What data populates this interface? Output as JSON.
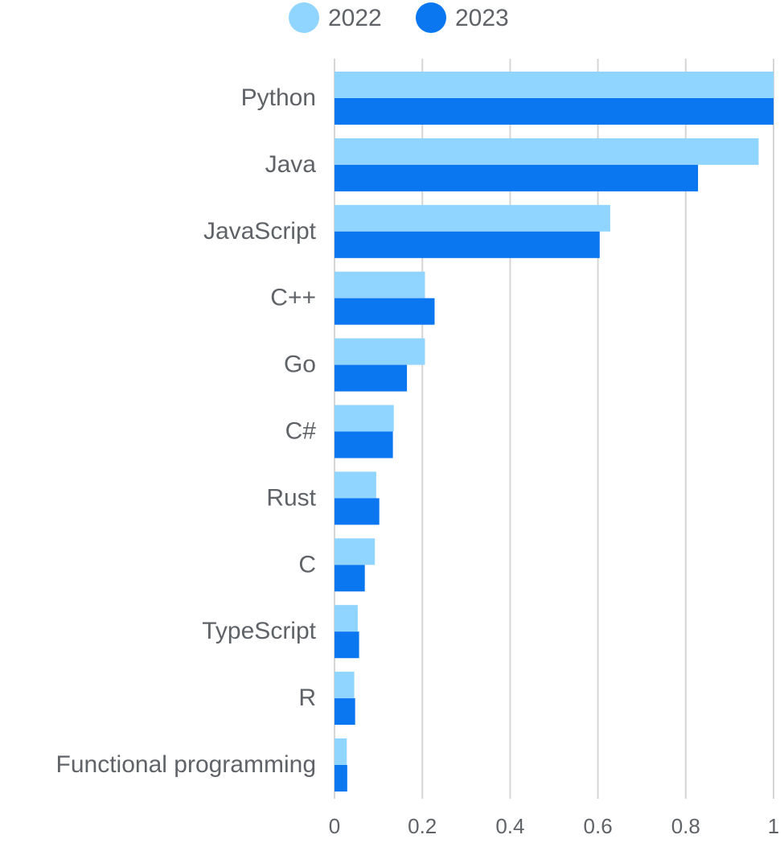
{
  "chart_data": {
    "type": "bar",
    "orientation": "horizontal",
    "categories": [
      "Python",
      "Java",
      "JavaScript",
      "C++",
      "Go",
      "C#",
      "Rust",
      "C",
      "TypeScript",
      "R",
      "Functional programming"
    ],
    "series": [
      {
        "name": "2022",
        "color": "#90D5FF",
        "values": [
          1.0,
          0.966,
          0.628,
          0.206,
          0.206,
          0.135,
          0.095,
          0.092,
          0.053,
          0.045,
          0.028
        ]
      },
      {
        "name": "2023",
        "color": "#0A76F0",
        "values": [
          1.0,
          0.828,
          0.604,
          0.228,
          0.165,
          0.133,
          0.102,
          0.069,
          0.056,
          0.047,
          0.029
        ]
      }
    ],
    "xlim": [
      0,
      1
    ],
    "xticks": [
      "0",
      "0.2",
      "0.4",
      "0.6",
      "0.8",
      "1"
    ],
    "grid": "vertical",
    "legend_position": "top"
  },
  "colors": {
    "grid": "#d5d5d5",
    "text": "#5f6368",
    "background": "#ffffff"
  }
}
